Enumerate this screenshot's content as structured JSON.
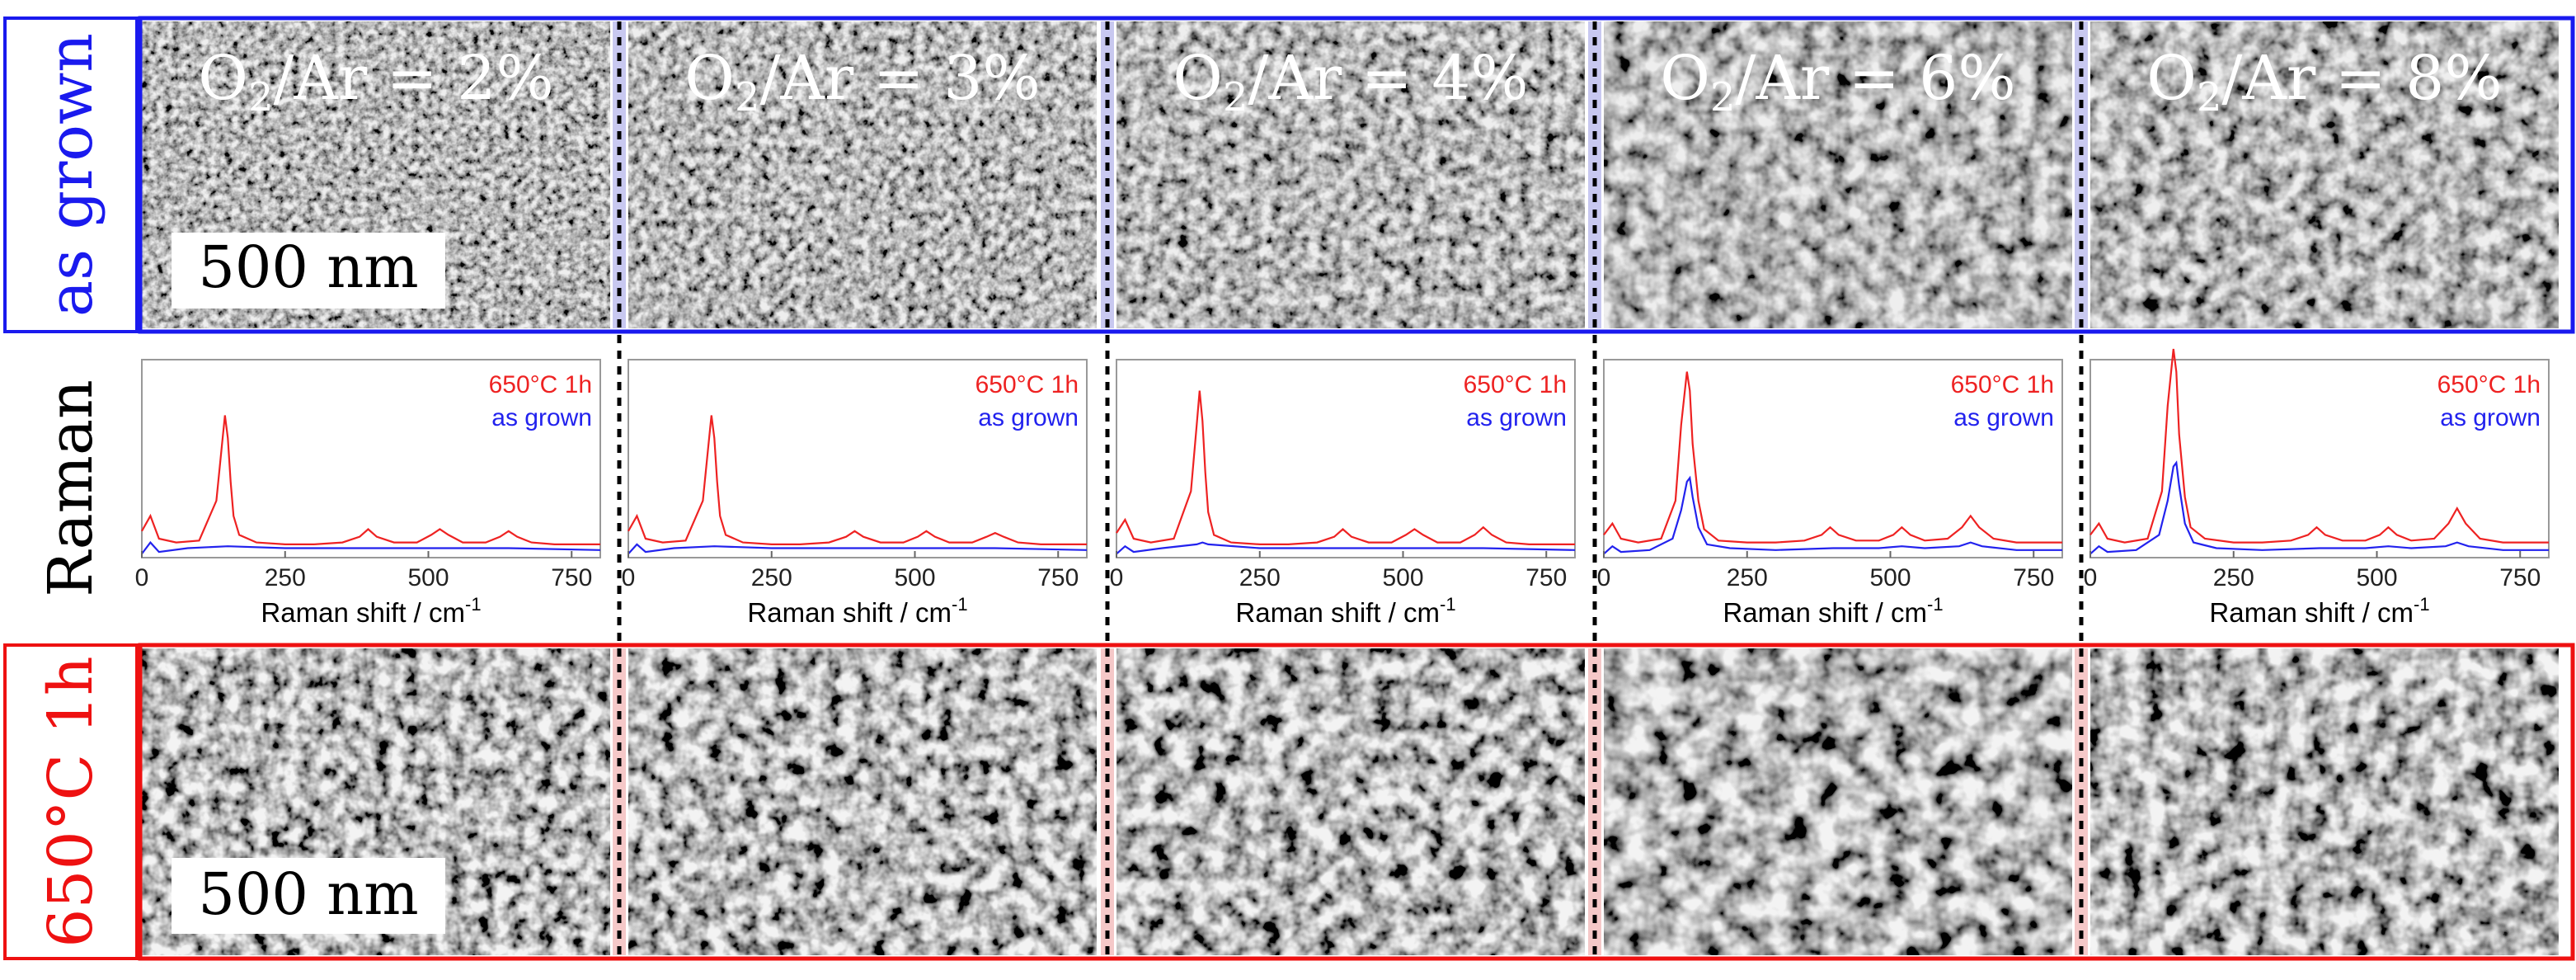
{
  "row_labels": {
    "top": "as grown",
    "middle": "Raman",
    "bottom": "650°C 1h"
  },
  "colors": {
    "as_grown_frame": "#1a1aee",
    "annealed_frame": "#ee1111",
    "as_grown_separator": "#c8c8f0",
    "annealed_separator": "#f5c8c8",
    "sem_dark": "#2e2e2e",
    "sem_light": "#b4b4b4"
  },
  "scale_bar": "500 nm",
  "panels": [
    {
      "o2_ar": "O2/Ar = 2%",
      "o2_prefix": "O",
      "o2_sub": "2",
      "o2_suffix": "/Ar = 2%"
    },
    {
      "o2_ar": "O2/Ar = 3%",
      "o2_prefix": "O",
      "o2_sub": "2",
      "o2_suffix": "/Ar = 3%"
    },
    {
      "o2_ar": "O2/Ar = 4%",
      "o2_prefix": "O",
      "o2_sub": "2",
      "o2_suffix": "/Ar = 4%"
    },
    {
      "o2_ar": "O2/Ar = 6%",
      "o2_prefix": "O",
      "o2_sub": "2",
      "o2_suffix": "/Ar = 6%"
    },
    {
      "o2_ar": "O2/Ar = 8%",
      "o2_prefix": "O",
      "o2_sub": "2",
      "o2_suffix": "/Ar = 8%"
    }
  ],
  "chart_data": [
    {
      "type": "line",
      "xlabel_main": "Raman shift / cm",
      "xlabel_sup": "-1",
      "xticks": [
        0,
        250,
        500,
        750
      ],
      "xlim": [
        0,
        800
      ],
      "ylim": [
        0,
        1
      ],
      "series": [
        {
          "name": "650°C 1h",
          "color": "#ee2222",
          "x": [
            0,
            15,
            30,
            60,
            100,
            130,
            140,
            145,
            150,
            155,
            160,
            170,
            200,
            250,
            300,
            350,
            380,
            395,
            410,
            440,
            480,
            505,
            520,
            535,
            560,
            600,
            625,
            640,
            655,
            680,
            720,
            760,
            800
          ],
          "y": [
            0.14,
            0.22,
            0.1,
            0.08,
            0.09,
            0.3,
            0.6,
            0.75,
            0.63,
            0.4,
            0.22,
            0.12,
            0.08,
            0.07,
            0.07,
            0.08,
            0.11,
            0.15,
            0.11,
            0.08,
            0.08,
            0.12,
            0.15,
            0.12,
            0.08,
            0.08,
            0.11,
            0.14,
            0.11,
            0.08,
            0.07,
            0.07,
            0.07
          ]
        },
        {
          "name": "as grown",
          "color": "#2222ee",
          "x": [
            0,
            15,
            30,
            80,
            150,
            250,
            400,
            520,
            640,
            800
          ],
          "y": [
            0.02,
            0.08,
            0.03,
            0.05,
            0.06,
            0.05,
            0.05,
            0.05,
            0.05,
            0.04
          ]
        }
      ]
    },
    {
      "type": "line",
      "xlabel_main": "Raman shift / cm",
      "xlabel_sup": "-1",
      "xticks": [
        0,
        250,
        500,
        750
      ],
      "xlim": [
        0,
        800
      ],
      "ylim": [
        0,
        1
      ],
      "series": [
        {
          "name": "650°C 1h",
          "color": "#ee2222",
          "x": [
            0,
            15,
            30,
            60,
            100,
            130,
            140,
            145,
            150,
            155,
            160,
            170,
            200,
            250,
            300,
            350,
            380,
            395,
            410,
            440,
            480,
            505,
            520,
            535,
            560,
            600,
            625,
            640,
            655,
            680,
            720,
            760,
            800
          ],
          "y": [
            0.14,
            0.22,
            0.1,
            0.08,
            0.09,
            0.3,
            0.6,
            0.75,
            0.63,
            0.4,
            0.22,
            0.12,
            0.08,
            0.07,
            0.07,
            0.08,
            0.11,
            0.14,
            0.11,
            0.08,
            0.08,
            0.11,
            0.14,
            0.11,
            0.08,
            0.08,
            0.11,
            0.13,
            0.11,
            0.08,
            0.07,
            0.07,
            0.07
          ]
        },
        {
          "name": "as grown",
          "color": "#2222ee",
          "x": [
            0,
            15,
            30,
            80,
            150,
            250,
            400,
            520,
            640,
            800
          ],
          "y": [
            0.02,
            0.07,
            0.03,
            0.05,
            0.06,
            0.05,
            0.05,
            0.05,
            0.05,
            0.04
          ]
        }
      ]
    },
    {
      "type": "line",
      "xlabel_main": "Raman shift / cm",
      "xlabel_sup": "-1",
      "xticks": [
        0,
        250,
        500,
        750
      ],
      "xlim": [
        0,
        800
      ],
      "ylim": [
        0,
        1
      ],
      "series": [
        {
          "name": "650°C 1h",
          "color": "#ee2222",
          "x": [
            0,
            15,
            30,
            60,
            100,
            130,
            140,
            145,
            150,
            155,
            160,
            170,
            200,
            250,
            300,
            350,
            380,
            395,
            410,
            440,
            480,
            505,
            520,
            535,
            560,
            600,
            625,
            640,
            655,
            680,
            720,
            760,
            800
          ],
          "y": [
            0.13,
            0.2,
            0.1,
            0.08,
            0.1,
            0.35,
            0.7,
            0.88,
            0.72,
            0.45,
            0.24,
            0.12,
            0.08,
            0.07,
            0.07,
            0.08,
            0.11,
            0.15,
            0.11,
            0.08,
            0.08,
            0.12,
            0.15,
            0.12,
            0.08,
            0.08,
            0.12,
            0.16,
            0.12,
            0.08,
            0.07,
            0.07,
            0.07
          ]
        },
        {
          "name": "as grown",
          "color": "#2222ee",
          "x": [
            0,
            15,
            30,
            80,
            140,
            150,
            160,
            250,
            400,
            520,
            640,
            800
          ],
          "y": [
            0.02,
            0.06,
            0.03,
            0.05,
            0.07,
            0.08,
            0.07,
            0.05,
            0.05,
            0.05,
            0.05,
            0.04
          ]
        }
      ]
    },
    {
      "type": "line",
      "xlabel_main": "Raman shift / cm",
      "xlabel_sup": "-1",
      "xticks": [
        0,
        250,
        500,
        750
      ],
      "xlim": [
        0,
        800
      ],
      "ylim": [
        0,
        1
      ],
      "series": [
        {
          "name": "650°C 1h",
          "color": "#ee2222",
          "x": [
            0,
            15,
            30,
            60,
            100,
            125,
            135,
            145,
            150,
            155,
            165,
            175,
            200,
            250,
            300,
            350,
            380,
            395,
            410,
            440,
            480,
            505,
            520,
            535,
            560,
            600,
            625,
            640,
            655,
            680,
            720,
            760,
            800
          ],
          "y": [
            0.12,
            0.18,
            0.1,
            0.08,
            0.1,
            0.3,
            0.7,
            0.98,
            0.88,
            0.6,
            0.3,
            0.15,
            0.09,
            0.08,
            0.08,
            0.09,
            0.12,
            0.16,
            0.12,
            0.09,
            0.09,
            0.12,
            0.16,
            0.12,
            0.09,
            0.1,
            0.16,
            0.22,
            0.16,
            0.1,
            0.08,
            0.08,
            0.08
          ]
        },
        {
          "name": "as grown",
          "color": "#2222ee",
          "x": [
            0,
            15,
            30,
            80,
            120,
            135,
            145,
            150,
            155,
            165,
            180,
            220,
            300,
            400,
            480,
            520,
            560,
            620,
            640,
            660,
            720,
            800
          ],
          "y": [
            0.02,
            0.06,
            0.03,
            0.04,
            0.1,
            0.25,
            0.4,
            0.42,
            0.32,
            0.16,
            0.07,
            0.05,
            0.04,
            0.05,
            0.05,
            0.06,
            0.05,
            0.06,
            0.08,
            0.06,
            0.04,
            0.04
          ]
        }
      ]
    },
    {
      "type": "line",
      "xlabel_main": "Raman shift / cm",
      "xlabel_sup": "-1",
      "xticks": [
        0,
        250,
        500,
        750
      ],
      "xlim": [
        0,
        800
      ],
      "ylim": [
        0,
        1
      ],
      "series": [
        {
          "name": "650°C 1h",
          "color": "#ee2222",
          "x": [
            0,
            15,
            30,
            60,
            100,
            125,
            135,
            145,
            150,
            155,
            165,
            175,
            200,
            250,
            300,
            350,
            380,
            395,
            410,
            440,
            480,
            505,
            520,
            535,
            560,
            600,
            625,
            640,
            655,
            680,
            720,
            760,
            800
          ],
          "y": [
            0.12,
            0.18,
            0.1,
            0.08,
            0.1,
            0.35,
            0.8,
            1.1,
            0.98,
            0.65,
            0.32,
            0.16,
            0.1,
            0.08,
            0.08,
            0.09,
            0.12,
            0.16,
            0.12,
            0.09,
            0.09,
            0.12,
            0.16,
            0.12,
            0.09,
            0.1,
            0.18,
            0.26,
            0.18,
            0.1,
            0.08,
            0.08,
            0.08
          ]
        },
        {
          "name": "as grown",
          "color": "#2222ee",
          "x": [
            0,
            15,
            30,
            80,
            120,
            135,
            145,
            150,
            155,
            165,
            180,
            220,
            300,
            400,
            480,
            520,
            560,
            620,
            640,
            660,
            720,
            800
          ],
          "y": [
            0.02,
            0.06,
            0.03,
            0.04,
            0.12,
            0.3,
            0.48,
            0.5,
            0.38,
            0.18,
            0.08,
            0.05,
            0.04,
            0.05,
            0.05,
            0.06,
            0.05,
            0.06,
            0.08,
            0.06,
            0.04,
            0.04
          ]
        }
      ]
    }
  ]
}
